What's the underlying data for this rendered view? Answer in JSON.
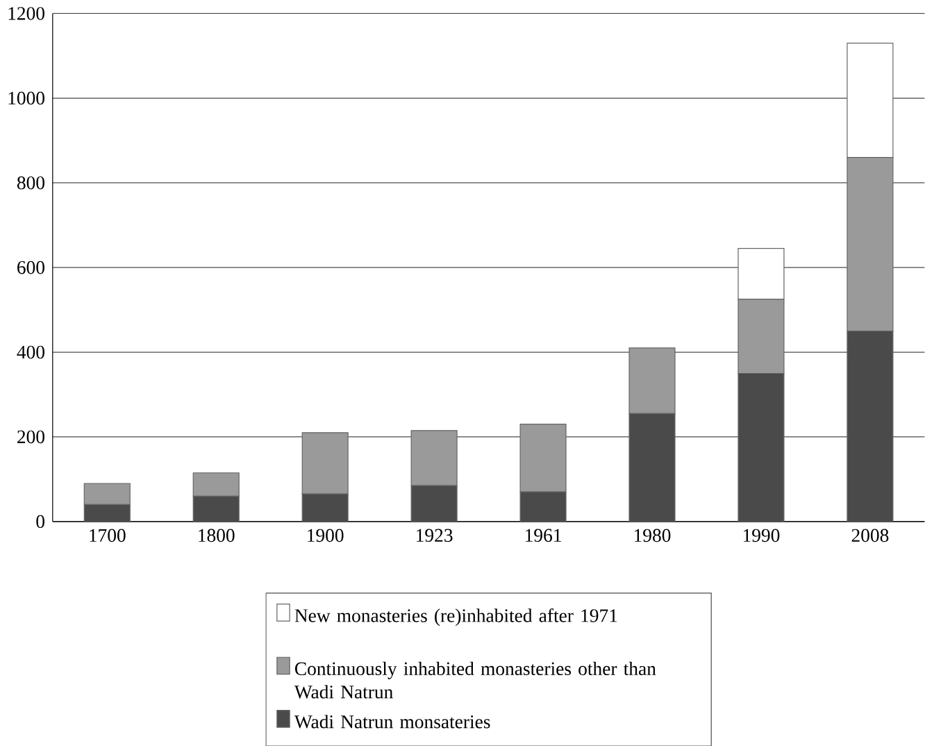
{
  "chart_data": {
    "type": "bar",
    "stacked": true,
    "categories": [
      "1700",
      "1800",
      "1900",
      "1923",
      "1961",
      "1980",
      "1990",
      "2008"
    ],
    "series": [
      {
        "name": "Wadi Natrun monsateries",
        "color": "#4a4a4a",
        "values": [
          40,
          60,
          65,
          85,
          70,
          255,
          350,
          450
        ]
      },
      {
        "name": "Continuously inhabited monasteries other than Wadi Natrun",
        "color": "#9a9a9a",
        "values": [
          50,
          55,
          145,
          130,
          160,
          155,
          175,
          410
        ]
      },
      {
        "name": "New monasteries (re)inhabited after 1971",
        "color": "#ffffff",
        "values": [
          0,
          0,
          0,
          0,
          0,
          0,
          120,
          270
        ]
      }
    ],
    "ylim": [
      0,
      1200
    ],
    "yticks": [
      0,
      200,
      400,
      600,
      800,
      1000,
      1200
    ],
    "grid": "y",
    "legend": "bottom"
  }
}
